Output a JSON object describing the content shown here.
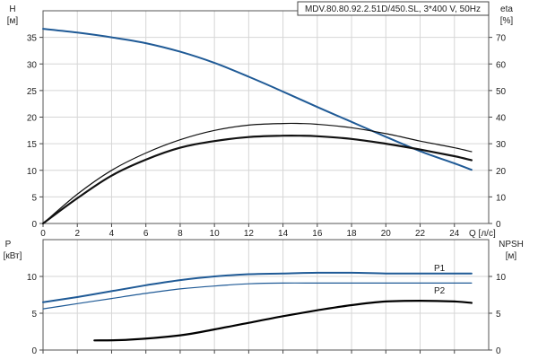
{
  "chart_data": [
    {
      "type": "line",
      "title": "MDV.80.80.92.2.51D/450.SL, 3*400 V, 50Hz",
      "xlabel": "Q [л/с]",
      "xlim": [
        0,
        26
      ],
      "x_ticks": [
        0,
        2,
        4,
        6,
        8,
        10,
        12,
        14,
        16,
        18,
        20,
        22,
        24
      ],
      "left_axis": {
        "label_top": "H",
        "label_unit": "[м]",
        "ylim": [
          0,
          40
        ],
        "ticks": [
          0,
          5,
          10,
          15,
          20,
          25,
          30,
          35
        ]
      },
      "right_axis": {
        "label_top": "eta",
        "label_unit": "[%]",
        "ylim": [
          0,
          80
        ],
        "ticks": [
          0,
          10,
          20,
          30,
          40,
          50,
          60,
          70
        ]
      },
      "grid": true,
      "series": [
        {
          "axis": "left",
          "color": "#1f5a96",
          "width": 2,
          "x": [
            0,
            2,
            4,
            6,
            8,
            10,
            12,
            14,
            16,
            18,
            20,
            22,
            24,
            25
          ],
          "y": [
            36.6,
            35.9,
            35.0,
            33.9,
            32.3,
            30.2,
            27.6,
            24.8,
            21.9,
            19.1,
            16.3,
            13.6,
            11.3,
            10.1
          ]
        },
        {
          "axis": "right",
          "color": "#111111",
          "width": 1.2,
          "x": [
            0,
            2,
            4,
            6,
            8,
            10,
            12,
            14,
            15,
            16,
            18,
            20,
            22,
            24,
            25
          ],
          "y": [
            0,
            11,
            20,
            26.5,
            31.5,
            35,
            37,
            37.6,
            37.6,
            37.3,
            36,
            33.8,
            31,
            28.5,
            27
          ]
        },
        {
          "axis": "right",
          "color": "#111111",
          "width": 2.2,
          "x": [
            0,
            2,
            4,
            6,
            8,
            10,
            12,
            14,
            15,
            16,
            18,
            20,
            22,
            24,
            25
          ],
          "y": [
            0,
            9.5,
            18,
            24,
            28.5,
            31,
            32.5,
            33,
            33,
            32.8,
            31.8,
            30,
            27.8,
            25.3,
            23.8
          ]
        }
      ]
    },
    {
      "type": "line",
      "xlim": [
        0,
        26
      ],
      "left_axis": {
        "label_top": "P",
        "label_unit": "[кВт]",
        "ylim": [
          0,
          15
        ],
        "ticks": [
          0,
          5,
          10
        ]
      },
      "right_axis": {
        "label_top": "NPSH",
        "label_unit": "[м]",
        "ylim": [
          0,
          15
        ],
        "ticks": [
          0,
          5,
          10
        ]
      },
      "grid": true,
      "series": [
        {
          "name": "P1",
          "axis": "left",
          "color": "#1f5a96",
          "width": 2,
          "x": [
            0,
            2,
            4,
            6,
            8,
            10,
            12,
            14,
            16,
            18,
            20,
            22,
            24,
            25
          ],
          "y": [
            6.5,
            7.2,
            8.0,
            8.8,
            9.5,
            10.0,
            10.3,
            10.4,
            10.5,
            10.5,
            10.4,
            10.4,
            10.4,
            10.4
          ]
        },
        {
          "name": "P2",
          "axis": "left",
          "color": "#1f5a96",
          "width": 1.2,
          "x": [
            0,
            2,
            4,
            6,
            8,
            10,
            12,
            14,
            16,
            18,
            20,
            22,
            24,
            25
          ],
          "y": [
            5.6,
            6.3,
            7.0,
            7.7,
            8.3,
            8.7,
            9.0,
            9.1,
            9.1,
            9.1,
            9.1,
            9.1,
            9.1,
            9.1
          ]
        },
        {
          "axis": "right",
          "color": "#000000",
          "width": 2.2,
          "x": [
            3,
            5,
            8,
            10,
            12,
            14,
            16,
            18,
            20,
            22,
            24,
            25
          ],
          "y": [
            1.3,
            1.4,
            2.0,
            2.8,
            3.7,
            4.6,
            5.4,
            6.1,
            6.6,
            6.7,
            6.6,
            6.4
          ]
        }
      ]
    }
  ]
}
